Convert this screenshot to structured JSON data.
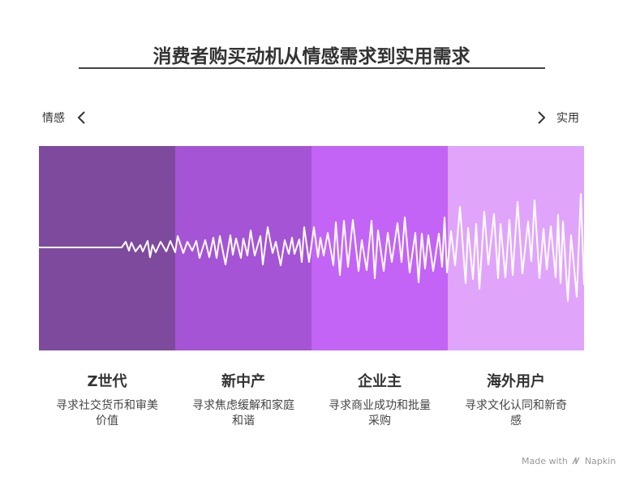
{
  "title": "消费者购买动机从情感需求到实用需求",
  "axis": {
    "left_label": "情感",
    "right_label": "实用"
  },
  "colors": {
    "seg1": "#7e4a9e",
    "seg2": "#a554d6",
    "seg3": "#c364f6",
    "seg4": "#e0a5fb",
    "wave": "#ffffff",
    "text": "#333333"
  },
  "segments": [
    {
      "title": "Z世代",
      "desc": [
        "寻求社交货币和审美",
        "价值"
      ]
    },
    {
      "title": "新中产",
      "desc": [
        "寻求焦虑缓解和家庭",
        "和谐"
      ]
    },
    {
      "title": "企业主",
      "desc": [
        "寻求商业成功和批量",
        "采购"
      ]
    },
    {
      "title": "海外用户",
      "desc": [
        "寻求文化认同和新奇",
        "感"
      ]
    }
  ],
  "footer": {
    "made_with": "Made with",
    "brand": "Napkin"
  }
}
